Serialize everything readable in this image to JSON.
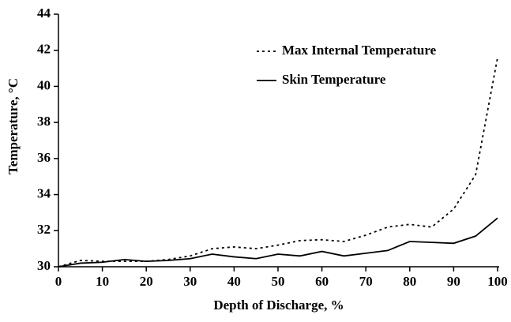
{
  "chart_data": {
    "type": "line",
    "x_label": "Depth of Discharge, %",
    "y_label": "Temperature, °C",
    "x": [
      0,
      5,
      10,
      15,
      20,
      25,
      30,
      35,
      40,
      45,
      50,
      55,
      60,
      65,
      70,
      75,
      80,
      85,
      90,
      95,
      100
    ],
    "series": [
      {
        "name": "Max Internal Temperature",
        "color": "#000000",
        "dash": "3,4",
        "values": [
          30.0,
          30.35,
          30.3,
          30.3,
          30.3,
          30.4,
          30.6,
          31.0,
          31.1,
          31.0,
          31.2,
          31.45,
          31.5,
          31.4,
          31.75,
          32.2,
          32.35,
          32.2,
          33.2,
          35.1,
          41.6
        ]
      },
      {
        "name": "Skin Temperature",
        "color": "#000000",
        "dash": "none",
        "values": [
          30.0,
          30.2,
          30.25,
          30.4,
          30.3,
          30.35,
          30.45,
          30.7,
          30.55,
          30.45,
          30.7,
          30.6,
          30.85,
          30.6,
          30.75,
          30.9,
          31.4,
          31.35,
          31.3,
          31.7,
          32.7
        ]
      }
    ],
    "xlim": [
      0,
      100
    ],
    "ylim": [
      30,
      44
    ],
    "xticks": [
      0,
      10,
      20,
      30,
      40,
      50,
      60,
      70,
      80,
      90,
      100
    ],
    "yticks": [
      30,
      32,
      34,
      36,
      38,
      40,
      42,
      44
    ],
    "grid": false,
    "legend": "upper right"
  }
}
